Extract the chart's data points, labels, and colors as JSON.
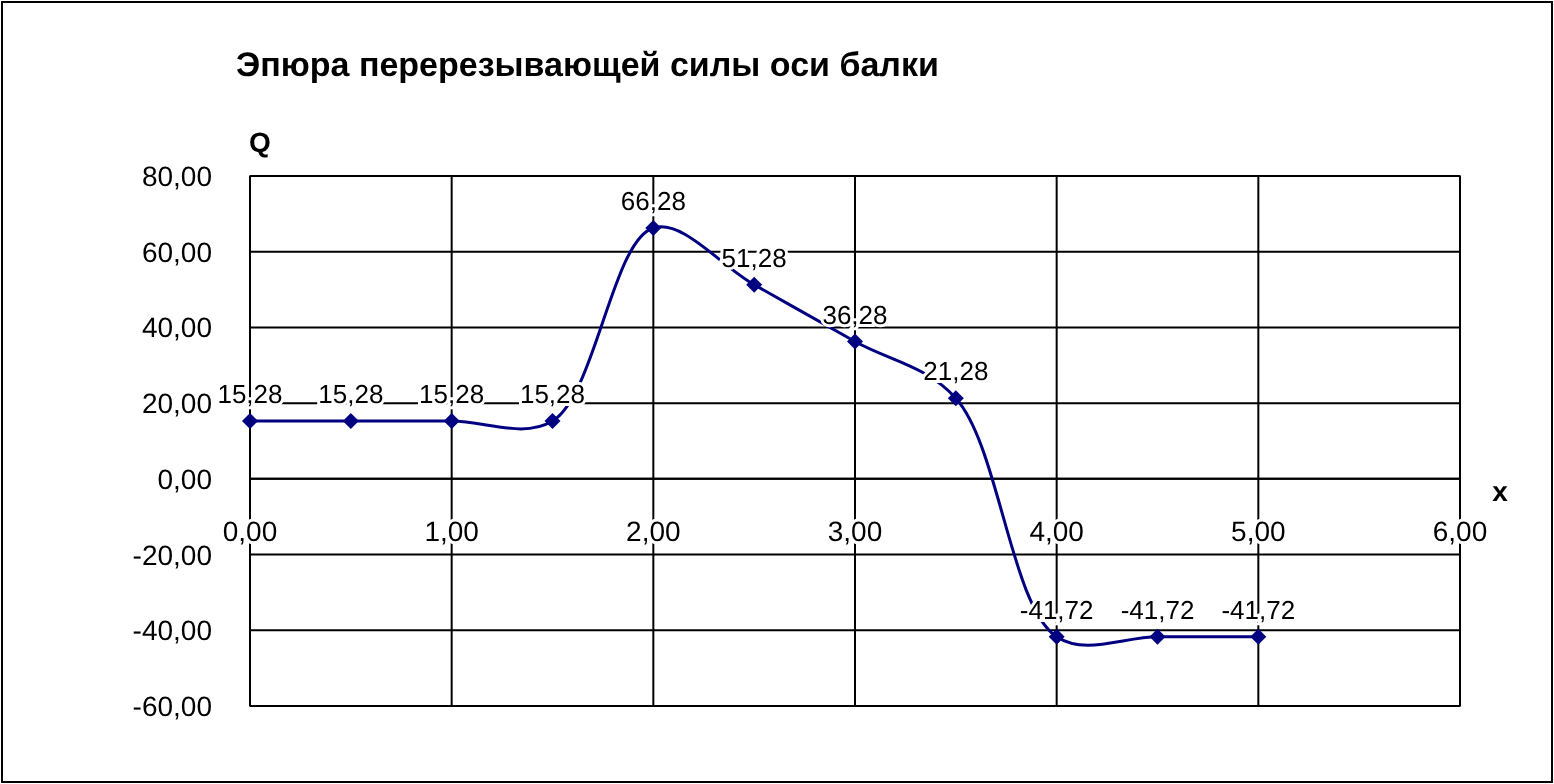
{
  "chart_data": {
    "type": "line",
    "title": "Эпюра перерезывающей силы оси балки",
    "xlabel": "x",
    "ylabel": "Q",
    "x": [
      0,
      0.5,
      1,
      1.5,
      2,
      2.5,
      3,
      3.5,
      4,
      4.5,
      5
    ],
    "series": [
      {
        "color": "#000080",
        "values": [
          15.28,
          15.28,
          15.28,
          15.28,
          66.28,
          51.28,
          36.28,
          21.28,
          -41.72,
          -41.72,
          -41.72
        ],
        "value_labels": [
          "15,28",
          "15,28",
          "15,28",
          "15,28",
          "66,28",
          "51,28",
          "36,28",
          "21,28",
          "-41,72",
          "-41,72",
          "-41,72"
        ]
      }
    ],
    "xlim": [
      0,
      6
    ],
    "xticks": [
      {
        "value": 0,
        "label": "0,00"
      },
      {
        "value": 1,
        "label": "1,00"
      },
      {
        "value": 2,
        "label": "2,00"
      },
      {
        "value": 3,
        "label": "3,00"
      },
      {
        "value": 4,
        "label": "4,00"
      },
      {
        "value": 5,
        "label": "5,00"
      },
      {
        "value": 6,
        "label": "6,00"
      }
    ],
    "ylim": [
      -60,
      80
    ],
    "yticks": [
      {
        "value": -60,
        "label": "-60,00"
      },
      {
        "value": -40,
        "label": "-40,00"
      },
      {
        "value": -20,
        "label": "-20,00"
      },
      {
        "value": 0,
        "label": "0,00"
      },
      {
        "value": 20,
        "label": "20,00"
      },
      {
        "value": 40,
        "label": "40,00"
      },
      {
        "value": 60,
        "label": "60,00"
      },
      {
        "value": 80,
        "label": "80,00"
      }
    ],
    "grid": true,
    "marker": "diamond",
    "line_style": "solid"
  }
}
